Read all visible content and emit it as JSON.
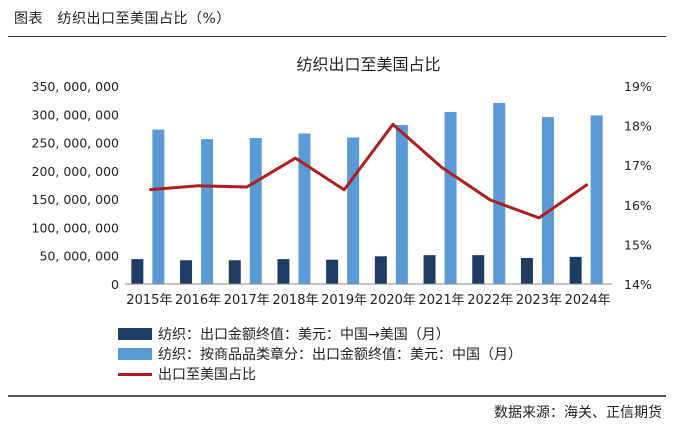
{
  "header": {
    "title": "图表　纺织出口至美国占比（%）"
  },
  "source": "数据来源：海关、正信期货",
  "chart_data": {
    "type": "bar",
    "title": "纺织出口至美国占比",
    "categories": [
      "2015年",
      "2016年",
      "2017年",
      "2018年",
      "2019年",
      "2020年",
      "2021年",
      "2022年",
      "2023年",
      "2024年"
    ],
    "series": [
      {
        "name": "纺织：出口金额终值：美元：中国→美国（月）",
        "type": "bar",
        "axis": "left",
        "color": "#1f3d63",
        "values": [
          44000000,
          42000000,
          42000000,
          44000000,
          43000000,
          49000000,
          51000000,
          51000000,
          46000000,
          48000000
        ]
      },
      {
        "name": "纺织：按商品品类章分：出口金额终值：美元：中国（月）",
        "type": "bar",
        "axis": "left",
        "color": "#5b9bd5",
        "values": [
          273000000,
          256000000,
          258000000,
          266000000,
          259000000,
          281000000,
          304000000,
          320000000,
          295000000,
          298000000
        ]
      },
      {
        "name": "出口至美国占比",
        "type": "line",
        "axis": "right",
        "color": "#b01e1e",
        "values": [
          16.38,
          16.48,
          16.45,
          17.18,
          16.38,
          18.03,
          16.95,
          16.12,
          15.67,
          16.52
        ]
      }
    ],
    "y_left": {
      "min": 0,
      "max": 350000000,
      "ticks": [
        0,
        50000000,
        100000000,
        150000000,
        200000000,
        250000000,
        300000000,
        350000000
      ],
      "tick_labels": [
        "0",
        "50, 000, 000",
        "100, 000, 000",
        "150, 000, 000",
        "200, 000, 000",
        "250, 000, 000",
        "300, 000, 000",
        "350, 000, 000"
      ]
    },
    "y_right": {
      "min": 14,
      "max": 19,
      "ticks": [
        14,
        15,
        16,
        17,
        18,
        19
      ],
      "tick_labels": [
        "14%",
        "15%",
        "16%",
        "17%",
        "18%",
        "19%"
      ]
    },
    "grid": false,
    "legend_position": "bottom-left"
  }
}
